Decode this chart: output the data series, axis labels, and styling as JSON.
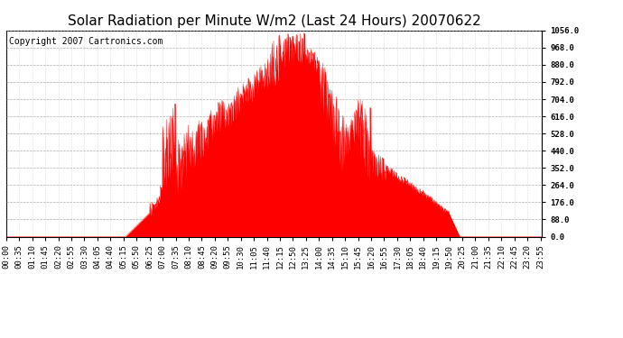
{
  "title": "Solar Radiation per Minute W/m2 (Last 24 Hours) 20070622",
  "copyright_text": "Copyright 2007 Cartronics.com",
  "bar_color": "#ff0000",
  "background_color": "#ffffff",
  "plot_bg_color": "#ffffff",
  "grid_color": "#999999",
  "dashed_line_color": "#ff0000",
  "ytick_labels": [
    "0.0",
    "88.0",
    "176.0",
    "264.0",
    "352.0",
    "440.0",
    "528.0",
    "616.0",
    "704.0",
    "792.0",
    "880.0",
    "968.0",
    "1056.0"
  ],
  "ytick_values": [
    0,
    88,
    176,
    264,
    352,
    440,
    528,
    616,
    704,
    792,
    880,
    968,
    1056
  ],
  "ymax": 1056,
  "ymin": 0,
  "title_fontsize": 11,
  "copyright_fontsize": 7,
  "tick_fontsize": 6.5
}
